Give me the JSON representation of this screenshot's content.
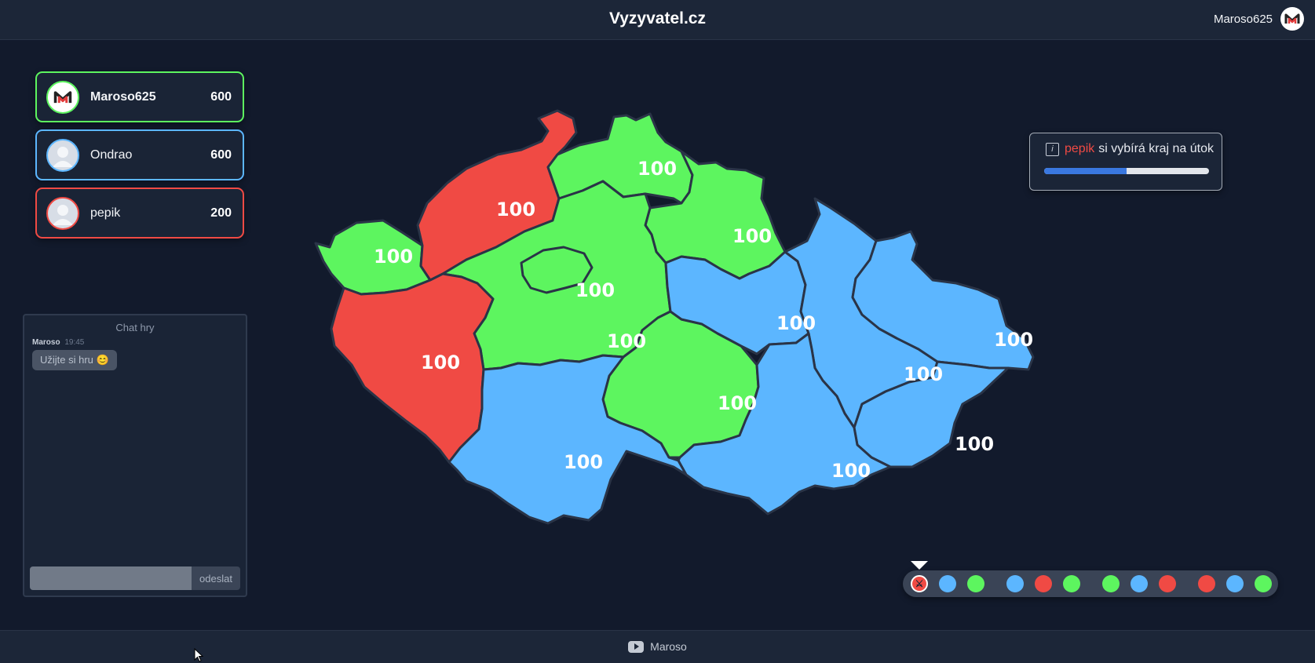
{
  "header": {
    "title": "Vyzyvatel.cz",
    "username": "Maroso625",
    "avatar_icon": "m-logo-icon"
  },
  "players": [
    {
      "name": "Maroso625",
      "score": "600",
      "color": "#5df55f",
      "avatar": "m-logo-icon"
    },
    {
      "name": "Ondrao",
      "score": "600",
      "color": "#5cb6ff",
      "avatar": "user-silhouette-icon"
    },
    {
      "name": "pepik",
      "score": "200",
      "color": "#f04a44",
      "avatar": "user-silhouette-icon"
    }
  ],
  "chat": {
    "title": "Chat hry",
    "messages": [
      {
        "author": "Maroso",
        "time": "19:45",
        "text": "Užijte si hru 😊"
      }
    ],
    "input_placeholder": "",
    "send_label": "odeslat"
  },
  "status": {
    "player_name": "pepik",
    "text": "si vybírá kraj na útok",
    "progress": 0.5,
    "icon": "info-icon"
  },
  "map": {
    "colors": {
      "green": "#5df55f",
      "blue": "#5cb6ff",
      "red": "#f04a44"
    },
    "regions": [
      {
        "id": "karlovarsky",
        "owner": "green",
        "value": "100"
      },
      {
        "id": "ustecky",
        "owner": "red",
        "value": "100"
      },
      {
        "id": "liberecky",
        "owner": "green",
        "value": "100"
      },
      {
        "id": "kralovehradecky",
        "owner": "green",
        "value": "100"
      },
      {
        "id": "praha",
        "owner": "green",
        "value": "100"
      },
      {
        "id": "stredocesky",
        "owner": "green",
        "value": "100"
      },
      {
        "id": "plzensky",
        "owner": "red",
        "value": "100"
      },
      {
        "id": "pardubicky",
        "owner": "blue",
        "value": "100"
      },
      {
        "id": "olomoucky",
        "owner": "blue",
        "value": "100"
      },
      {
        "id": "moravskoslezsky",
        "owner": "blue",
        "value": "100"
      },
      {
        "id": "vysocina",
        "owner": "green",
        "value": "100"
      },
      {
        "id": "jihocesky",
        "owner": "blue",
        "value": "100"
      },
      {
        "id": "jihomoravsky",
        "owner": "blue",
        "value": "100"
      },
      {
        "id": "zlinsky",
        "owner": "blue",
        "value": "100"
      }
    ]
  },
  "timeline": {
    "rounds": [
      [
        "swords",
        "blue",
        "green"
      ],
      [
        "blue",
        "red",
        "green"
      ],
      [
        "green",
        "blue",
        "red"
      ],
      [
        "red",
        "blue",
        "green"
      ]
    ],
    "active_icon": "crossed-swords-icon"
  },
  "footer": {
    "label": "Maroso",
    "icon": "youtube-icon"
  }
}
